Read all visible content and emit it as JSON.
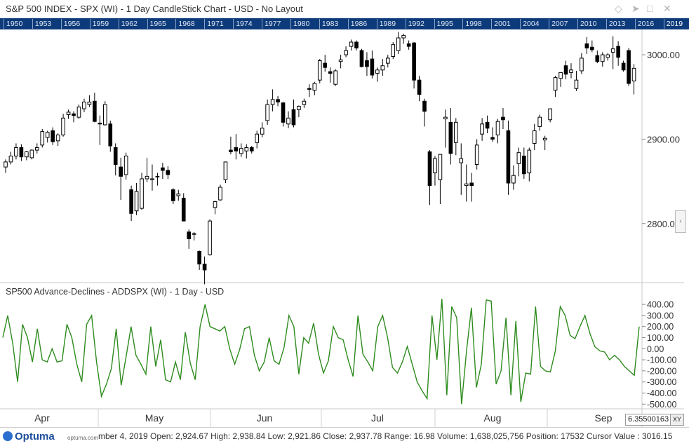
{
  "window": {
    "title": "S&P 500 INDEX - SPX (WI) - 1 Day CandleStick Chart - USD - No Layout"
  },
  "toolbar_icons": [
    "diamond-icon",
    "pin-icon",
    "maximize-icon",
    "close-icon"
  ],
  "year_strip": {
    "years": [
      "1950",
      "1953",
      "1956",
      "1959",
      "1962",
      "1965",
      "1968",
      "1971",
      "1974",
      "1977",
      "1980",
      "1983",
      "1986",
      "1989",
      "1992",
      "1995",
      "1998",
      "2001",
      "2004",
      "2007",
      "2010",
      "2013",
      "2016",
      "2019"
    ],
    "current": "2019"
  },
  "chart_data": [
    {
      "type": "candlestick",
      "title": "S&P 500 INDEX - SPX (WI) - 1 Day CandleStick Chart - USD - No Layout",
      "ylim": [
        2730,
        3030
      ],
      "y_ticks": [
        2800,
        2900,
        3000
      ],
      "y_tick_labels": [
        "2800.00",
        "2900.00",
        "3000.00"
      ],
      "x_labels": [
        "Apr",
        "May",
        "Jun",
        "Jul",
        "Aug",
        "Sep"
      ],
      "up_color": "#ffffff",
      "down_color": "#000000",
      "candles": [
        {
          "o": 2867,
          "h": 2876,
          "l": 2860,
          "c": 2873
        },
        {
          "o": 2873,
          "h": 2885,
          "l": 2870,
          "c": 2880
        },
        {
          "o": 2880,
          "h": 2895,
          "l": 2876,
          "c": 2890
        },
        {
          "o": 2890,
          "h": 2894,
          "l": 2874,
          "c": 2879
        },
        {
          "o": 2879,
          "h": 2886,
          "l": 2875,
          "c": 2885
        },
        {
          "o": 2878,
          "h": 2888,
          "l": 2876,
          "c": 2887
        },
        {
          "o": 2887,
          "h": 2895,
          "l": 2883,
          "c": 2890
        },
        {
          "o": 2893,
          "h": 2912,
          "l": 2890,
          "c": 2909
        },
        {
          "o": 2902,
          "h": 2910,
          "l": 2896,
          "c": 2908
        },
        {
          "o": 2910,
          "h": 2914,
          "l": 2893,
          "c": 2897
        },
        {
          "o": 2898,
          "h": 2907,
          "l": 2892,
          "c": 2905
        },
        {
          "o": 2905,
          "h": 2930,
          "l": 2903,
          "c": 2925
        },
        {
          "o": 2929,
          "h": 2935,
          "l": 2924,
          "c": 2932
        },
        {
          "o": 2930,
          "h": 2933,
          "l": 2920,
          "c": 2928
        },
        {
          "o": 2926,
          "h": 2941,
          "l": 2924,
          "c": 2938
        },
        {
          "o": 2936,
          "h": 2948,
          "l": 2932,
          "c": 2944
        },
        {
          "o": 2941,
          "h": 2952,
          "l": 2938,
          "c": 2944
        },
        {
          "o": 2945,
          "h": 2955,
          "l": 2920,
          "c": 2921
        },
        {
          "o": 2919,
          "h": 2928,
          "l": 2893,
          "c": 2918
        },
        {
          "o": 2917,
          "h": 2945,
          "l": 2916,
          "c": 2941
        },
        {
          "o": 2918,
          "h": 2922,
          "l": 2885,
          "c": 2892
        },
        {
          "o": 2890,
          "h": 2895,
          "l": 2857,
          "c": 2870
        },
        {
          "o": 2867,
          "h": 2878,
          "l": 2828,
          "c": 2856
        },
        {
          "o": 2858,
          "h": 2884,
          "l": 2852,
          "c": 2880
        },
        {
          "o": 2840,
          "h": 2845,
          "l": 2803,
          "c": 2812
        },
        {
          "o": 2815,
          "h": 2848,
          "l": 2810,
          "c": 2838
        },
        {
          "o": 2818,
          "h": 2860,
          "l": 2816,
          "c": 2853
        },
        {
          "o": 2853,
          "h": 2878,
          "l": 2849,
          "c": 2856
        },
        {
          "o": 2852,
          "h": 2870,
          "l": 2839,
          "c": 2853
        },
        {
          "o": 2856,
          "h": 2860,
          "l": 2845,
          "c": 2856
        },
        {
          "o": 2866,
          "h": 2872,
          "l": 2853,
          "c": 2863
        },
        {
          "o": 2863,
          "h": 2868,
          "l": 2853,
          "c": 2858
        },
        {
          "o": 2840,
          "h": 2842,
          "l": 2823,
          "c": 2827
        },
        {
          "o": 2833,
          "h": 2840,
          "l": 2827,
          "c": 2835
        },
        {
          "o": 2830,
          "h": 2836,
          "l": 2805,
          "c": 2803
        },
        {
          "o": 2790,
          "h": 2793,
          "l": 2770,
          "c": 2782
        },
        {
          "o": 2788,
          "h": 2790,
          "l": 2780,
          "c": 2788
        },
        {
          "o": 2767,
          "h": 2768,
          "l": 2745,
          "c": 2752
        },
        {
          "o": 2752,
          "h": 2761,
          "l": 2728,
          "c": 2745
        },
        {
          "o": 2763,
          "h": 2805,
          "l": 2762,
          "c": 2803
        },
        {
          "o": 2819,
          "h": 2827,
          "l": 2811,
          "c": 2826
        },
        {
          "o": 2828,
          "h": 2846,
          "l": 2827,
          "c": 2843
        },
        {
          "o": 2852,
          "h": 2873,
          "l": 2848,
          "c": 2873
        },
        {
          "o": 2887,
          "h": 2903,
          "l": 2882,
          "c": 2885
        },
        {
          "o": 2890,
          "h": 2906,
          "l": 2876,
          "c": 2886
        },
        {
          "o": 2883,
          "h": 2895,
          "l": 2879,
          "c": 2889
        },
        {
          "o": 2886,
          "h": 2894,
          "l": 2877,
          "c": 2890
        },
        {
          "o": 2890,
          "h": 2892,
          "l": 2883,
          "c": 2886
        },
        {
          "o": 2896,
          "h": 2910,
          "l": 2889,
          "c": 2906
        },
        {
          "o": 2906,
          "h": 2920,
          "l": 2902,
          "c": 2913
        },
        {
          "o": 2922,
          "h": 2947,
          "l": 2917,
          "c": 2941
        },
        {
          "o": 2941,
          "h": 2959,
          "l": 2933,
          "c": 2947
        },
        {
          "o": 2947,
          "h": 2951,
          "l": 2939,
          "c": 2944
        },
        {
          "o": 2943,
          "h": 2944,
          "l": 2915,
          "c": 2920
        },
        {
          "o": 2918,
          "h": 2933,
          "l": 2913,
          "c": 2925
        },
        {
          "o": 2935,
          "h": 2947,
          "l": 2914,
          "c": 2917
        },
        {
          "o": 2935,
          "h": 2940,
          "l": 2926,
          "c": 2939
        },
        {
          "o": 2941,
          "h": 2948,
          "l": 2937,
          "c": 2945
        },
        {
          "o": 2960,
          "h": 2965,
          "l": 2950,
          "c": 2959
        },
        {
          "o": 2958,
          "h": 2968,
          "l": 2952,
          "c": 2966
        },
        {
          "o": 2970,
          "h": 2995,
          "l": 2966,
          "c": 2993
        },
        {
          "o": 2990,
          "h": 3000,
          "l": 2980,
          "c": 2985
        },
        {
          "o": 2980,
          "h": 2985,
          "l": 2967,
          "c": 2978
        },
        {
          "o": 2965,
          "h": 2983,
          "l": 2963,
          "c": 2981
        },
        {
          "o": 2992,
          "h": 3000,
          "l": 2984,
          "c": 2994
        },
        {
          "o": 3000,
          "h": 3010,
          "l": 2997,
          "c": 3005
        },
        {
          "o": 3010,
          "h": 3018,
          "l": 3005,
          "c": 3015
        },
        {
          "o": 3015,
          "h": 3017,
          "l": 3005,
          "c": 3008
        },
        {
          "o": 3005,
          "h": 3007,
          "l": 2985,
          "c": 2986
        },
        {
          "o": 2993,
          "h": 3003,
          "l": 2975,
          "c": 2986
        },
        {
          "o": 2995,
          "h": 3005,
          "l": 2972,
          "c": 2976
        },
        {
          "o": 2978,
          "h": 2985,
          "l": 2968,
          "c": 2982
        },
        {
          "o": 2982,
          "h": 2995,
          "l": 2975,
          "c": 2987
        },
        {
          "o": 2990,
          "h": 3000,
          "l": 2985,
          "c": 2996
        },
        {
          "o": 2998,
          "h": 3015,
          "l": 2995,
          "c": 3012
        },
        {
          "o": 3005,
          "h": 3027,
          "l": 3001,
          "c": 3020
        },
        {
          "o": 3020,
          "h": 3025,
          "l": 3013,
          "c": 3023
        },
        {
          "o": 3013,
          "h": 3017,
          "l": 3006,
          "c": 3010
        },
        {
          "o": 3014,
          "h": 3015,
          "l": 2960,
          "c": 2970
        },
        {
          "o": 2970,
          "h": 2975,
          "l": 2945,
          "c": 2953
        },
        {
          "o": 2945,
          "h": 2948,
          "l": 2915,
          "c": 2933
        },
        {
          "o": 2885,
          "h": 2887,
          "l": 2822,
          "c": 2845
        },
        {
          "o": 2860,
          "h": 2880,
          "l": 2845,
          "c": 2877
        },
        {
          "o": 2852,
          "h": 2880,
          "l": 2823,
          "c": 2882
        },
        {
          "o": 2924,
          "h": 2935,
          "l": 2890,
          "c": 2926
        },
        {
          "o": 2920,
          "h": 2937,
          "l": 2870,
          "c": 2883
        },
        {
          "o": 2896,
          "h": 2925,
          "l": 2881,
          "c": 2920
        },
        {
          "o": 2872,
          "h": 2895,
          "l": 2834,
          "c": 2877
        },
        {
          "o": 2845,
          "h": 2870,
          "l": 2826,
          "c": 2847
        },
        {
          "o": 2848,
          "h": 2860,
          "l": 2826,
          "c": 2845
        },
        {
          "o": 2870,
          "h": 2900,
          "l": 2864,
          "c": 2893
        },
        {
          "o": 2906,
          "h": 2925,
          "l": 2898,
          "c": 2918
        },
        {
          "o": 2920,
          "h": 2928,
          "l": 2907,
          "c": 2913
        },
        {
          "o": 2902,
          "h": 2914,
          "l": 2897,
          "c": 2900
        },
        {
          "o": 2905,
          "h": 2924,
          "l": 2895,
          "c": 2921
        },
        {
          "o": 2926,
          "h": 2937,
          "l": 2912,
          "c": 2923
        },
        {
          "o": 2910,
          "h": 2922,
          "l": 2834,
          "c": 2848
        },
        {
          "o": 2848,
          "h": 2869,
          "l": 2840,
          "c": 2857
        },
        {
          "o": 2871,
          "h": 2890,
          "l": 2856,
          "c": 2884
        },
        {
          "o": 2880,
          "h": 2890,
          "l": 2853,
          "c": 2859
        },
        {
          "o": 2860,
          "h": 2890,
          "l": 2850,
          "c": 2887
        },
        {
          "o": 2895,
          "h": 2918,
          "l": 2887,
          "c": 2910
        },
        {
          "o": 2915,
          "h": 2929,
          "l": 2910,
          "c": 2926
        },
        {
          "o": 2899,
          "h": 2904,
          "l": 2887,
          "c": 2901
        },
        {
          "o": 2923,
          "h": 2936,
          "l": 2920,
          "c": 2936
        },
        {
          "o": 2958,
          "h": 2975,
          "l": 2950,
          "c": 2973
        },
        {
          "o": 2972,
          "h": 2978,
          "l": 2962,
          "c": 2979
        },
        {
          "o": 2987,
          "h": 2993,
          "l": 2971,
          "c": 2977
        },
        {
          "o": 2979,
          "h": 2990,
          "l": 2972,
          "c": 2982
        },
        {
          "o": 2960,
          "h": 2981,
          "l": 2957,
          "c": 2970
        },
        {
          "o": 2981,
          "h": 3002,
          "l": 2977,
          "c": 2996
        },
        {
          "o": 3013,
          "h": 3021,
          "l": 3001,
          "c": 3008
        },
        {
          "o": 3009,
          "h": 3017,
          "l": 3003,
          "c": 3006
        },
        {
          "o": 2999,
          "h": 3005,
          "l": 2990,
          "c": 2992
        },
        {
          "o": 2992,
          "h": 3003,
          "l": 2986,
          "c": 3000
        },
        {
          "o": 2997,
          "h": 3002,
          "l": 2993,
          "c": 3000
        },
        {
          "o": 3003,
          "h": 3022,
          "l": 2983,
          "c": 3007
        },
        {
          "o": 3010,
          "h": 3016,
          "l": 2987,
          "c": 2997
        },
        {
          "o": 2990,
          "h": 2993,
          "l": 2980,
          "c": 2982
        },
        {
          "o": 3005,
          "h": 3008,
          "l": 2963,
          "c": 2966
        },
        {
          "o": 2969,
          "h": 2989,
          "l": 2953,
          "c": 2984
        }
      ]
    },
    {
      "type": "line",
      "title": "SP500 Advance-Declines - ADDSPX (WI) - 1 Day - USD",
      "ylim": [
        -530,
        470
      ],
      "y_ticks": [
        400,
        300,
        200,
        100,
        0,
        -100,
        -200,
        -300,
        -400,
        -500
      ],
      "y_tick_labels": [
        "400.00",
        "300.00",
        "200.00",
        "100.00",
        "0.00",
        "-100.00",
        "-200.00",
        "-300.00",
        "-400.00",
        "-500.00"
      ],
      "line_color": "#2e8b1e",
      "values": [
        100,
        300,
        50,
        -300,
        220,
        100,
        -120,
        180,
        -100,
        -120,
        0,
        -120,
        -110,
        220,
        100,
        -140,
        -300,
        220,
        300,
        -120,
        -430,
        -320,
        -180,
        180,
        -330,
        -70,
        200,
        -60,
        -140,
        -230,
        200,
        -160,
        80,
        -280,
        -300,
        -120,
        -280,
        150,
        -130,
        -280,
        200,
        400,
        200,
        180,
        160,
        200,
        0,
        -140,
        -10,
        180,
        200,
        -60,
        -200,
        -120,
        100,
        -110,
        -140,
        10,
        300,
        200,
        -230,
        100,
        50,
        230,
        -50,
        -220,
        -110,
        200,
        100,
        80,
        -100,
        -250,
        300,
        -50,
        -120,
        -200,
        200,
        300,
        100,
        -170,
        -220,
        -120,
        20,
        -140,
        -300,
        -380,
        -450,
        300,
        -100,
        450,
        -420,
        380,
        280,
        -500,
        -20,
        370,
        -350,
        -140,
        440,
        430,
        -320,
        -200,
        280,
        -420,
        250,
        -480,
        -220,
        -230,
        380,
        -160,
        -200,
        -210,
        -20,
        380,
        300,
        120,
        90,
        200,
        300,
        140,
        20,
        -20,
        -30,
        -100,
        -60,
        -100,
        -160,
        -200,
        -240,
        200
      ]
    }
  ],
  "status_bar": {
    "logo": "Optuma",
    "logo_url": "optuma.com",
    "readout": "mber 4, 2019 Open: 2,924.67 High: 2,938.84 Low: 2,921.86 Close: 2,937.78 Range: 16.98 Volume: 1,638,025,756 Position: 17532 Cursor Value : 3016.15"
  },
  "cursor_box": {
    "value": "6.355001634",
    "mode": "XY"
  }
}
